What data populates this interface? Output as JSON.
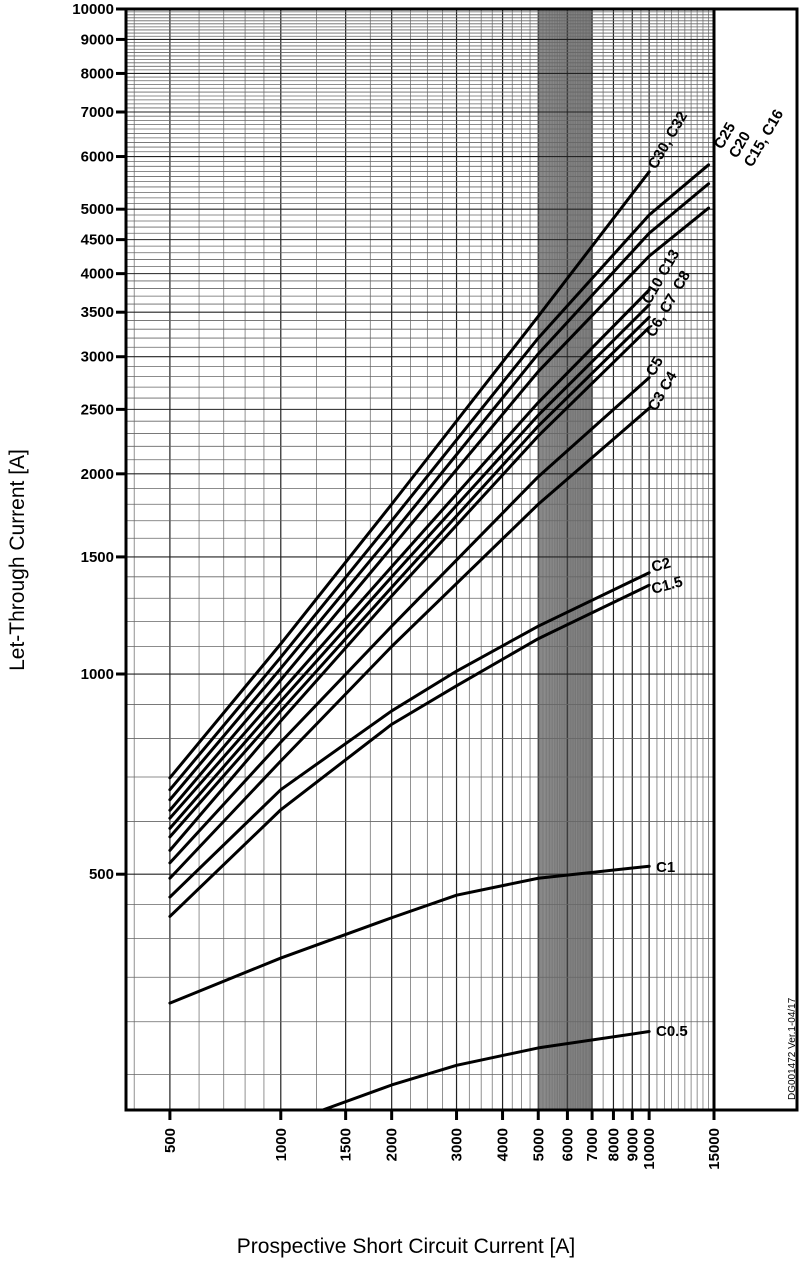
{
  "chart_data": {
    "type": "line",
    "title": "",
    "xlabel": "Prospective Short Circuit Current [A]",
    "ylabel": "Let-Through Current [A]",
    "x_scale": "log",
    "y_scale": "log",
    "xlim": [
      380,
      15000
    ],
    "ylim": [
      221,
      10000
    ],
    "grid": true,
    "legend": "none (curves labelled at their ends)",
    "x_ticks": [
      500,
      1000,
      1500,
      2000,
      3000,
      4000,
      5000,
      6000,
      7000,
      8000,
      9000,
      10000,
      15000
    ],
    "y_ticks": [
      500,
      1000,
      1500,
      2000,
      2500,
      3000,
      3500,
      4000,
      4500,
      5000,
      6000,
      7000,
      8000,
      9000,
      10000
    ],
    "series": [
      {
        "name": "C30, C32",
        "x": [
          500,
          1000,
          2000,
          5000,
          10000
        ],
        "y": [
          698,
          1110,
          1800,
          3450,
          5690
        ]
      },
      {
        "name": "C25",
        "x": [
          500,
          1000,
          2000,
          5000,
          10000,
          14500
        ],
        "y": [
          670,
          1060,
          1700,
          3200,
          4900,
          5830
        ]
      },
      {
        "name": "C20",
        "x": [
          500,
          1000,
          2000,
          5000,
          10000,
          14500
        ],
        "y": [
          647,
          1020,
          1620,
          3030,
          4600,
          5460
        ]
      },
      {
        "name": "C15, C16",
        "x": [
          500,
          1000,
          2000,
          5000,
          10000,
          14500
        ],
        "y": [
          624,
          980,
          1550,
          2850,
          4250,
          5020
        ]
      },
      {
        "name": "C13",
        "x": [
          500,
          1000,
          2000,
          5000,
          10000
        ],
        "y": [
          607,
          940,
          1450,
          2560,
          3780
        ]
      },
      {
        "name": "C10",
        "x": [
          500,
          1000,
          2000,
          5000,
          10000
        ],
        "y": [
          586,
          910,
          1400,
          2450,
          3590
        ]
      },
      {
        "name": "C8",
        "x": [
          500,
          1000,
          2000,
          5000,
          10000
        ],
        "y": [
          569,
          880,
          1350,
          2360,
          3440
        ]
      },
      {
        "name": "C6, C7",
        "x": [
          500,
          1000,
          2000,
          5000,
          10000
        ],
        "y": [
          543,
          850,
          1310,
          2280,
          3320
        ]
      },
      {
        "name": "C5",
        "x": [
          500,
          1000,
          2000,
          5000,
          10000
        ],
        "y": [
          520,
          790,
          1180,
          1980,
          2790
        ]
      },
      {
        "name": "C3 C4",
        "x": [
          500,
          1000,
          2000,
          5000,
          10000
        ],
        "y": [
          493,
          740,
          1100,
          1800,
          2510
        ]
      },
      {
        "name": "C2",
        "x": [
          500,
          1000,
          2000,
          3000,
          5000,
          10000
        ],
        "y": [
          462,
          670,
          880,
          1010,
          1180,
          1420
        ]
      },
      {
        "name": "C1.5",
        "x": [
          500,
          1000,
          2000,
          3000,
          5000,
          10000
        ],
        "y": [
          432,
          625,
          840,
          960,
          1130,
          1360
        ]
      },
      {
        "name": "C1",
        "x": [
          500,
          1000,
          2000,
          3000,
          5000,
          10000
        ],
        "y": [
          320,
          374,
          430,
          465,
          493,
          514
        ]
      },
      {
        "name": "C0.5",
        "x": [
          1300,
          2000,
          3000,
          5000,
          10000
        ],
        "y": [
          221,
          241,
          258,
          274,
          290
        ]
      }
    ],
    "annotations": [
      "DG001472  Ver.1-04/17"
    ]
  }
}
